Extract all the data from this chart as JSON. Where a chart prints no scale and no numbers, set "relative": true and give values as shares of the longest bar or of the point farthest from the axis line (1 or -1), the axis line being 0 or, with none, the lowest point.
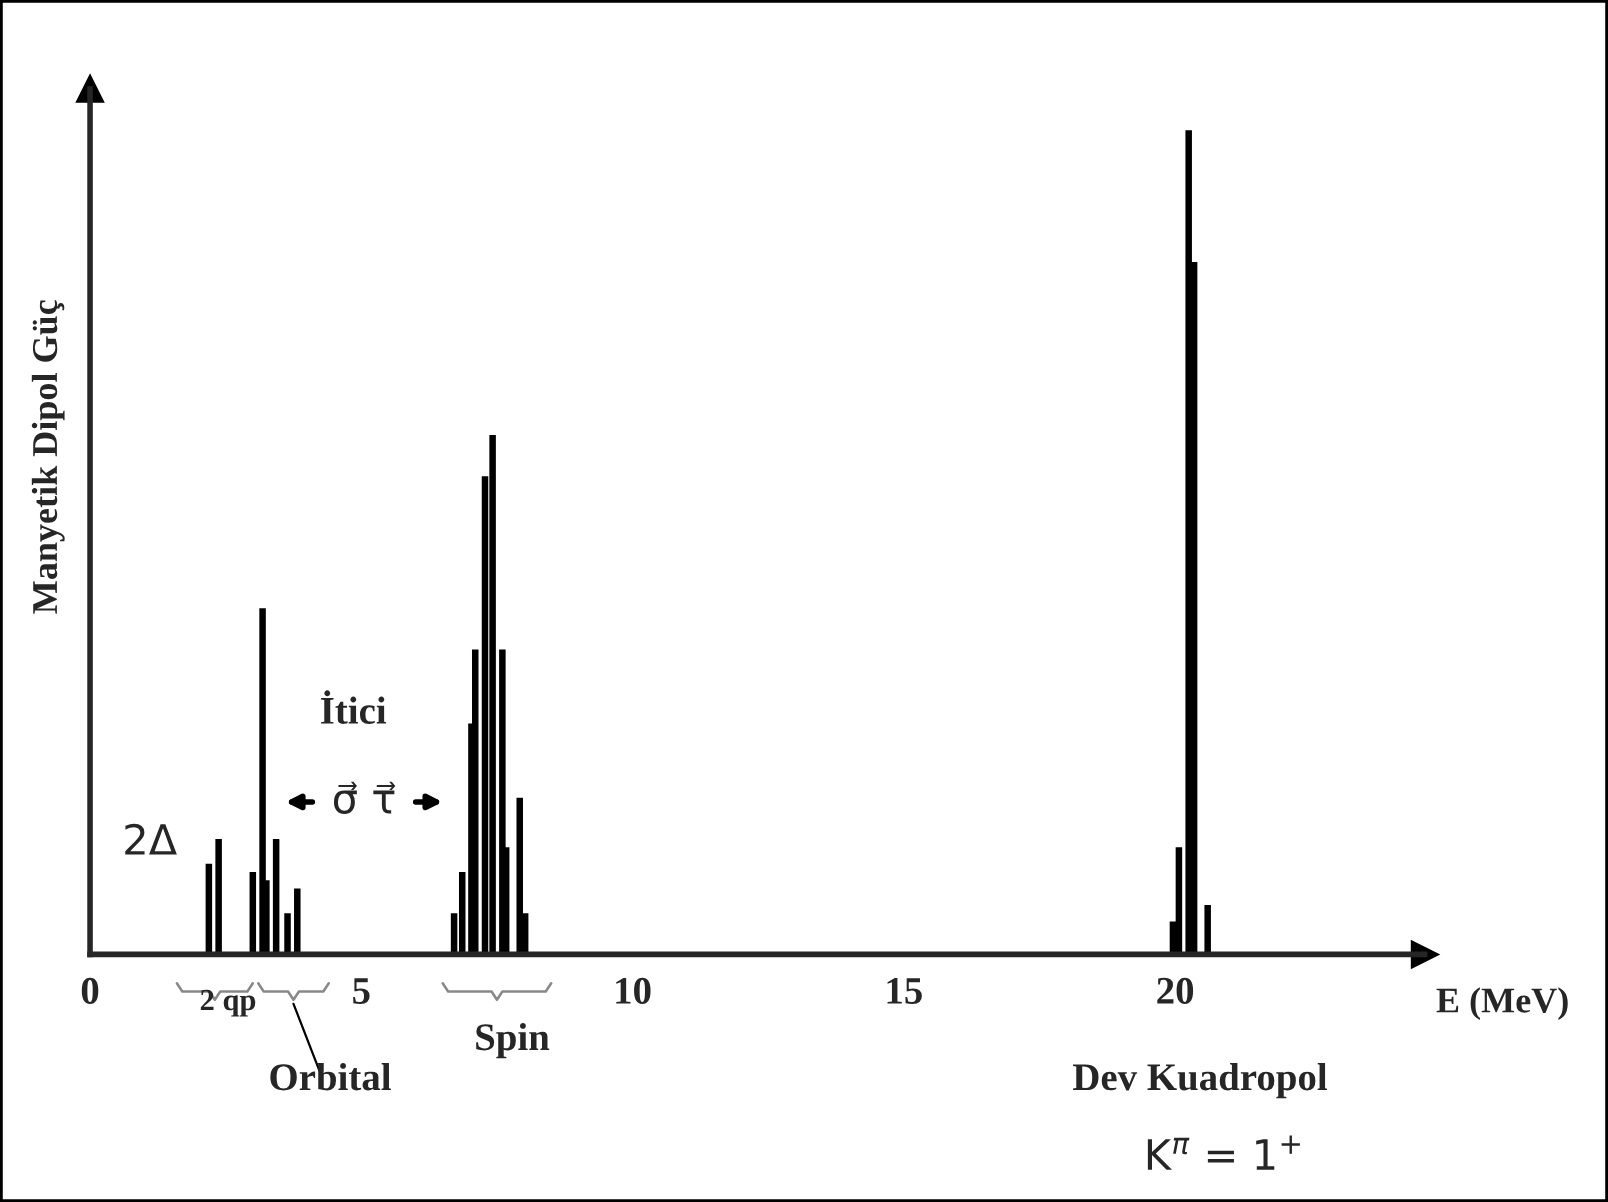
{
  "chart_data": {
    "type": "bar",
    "relative": true,
    "xlabel": "E (MeV)",
    "ylabel": "Manyetik Dipol Güç",
    "x": [
      2.19,
      2.37,
      3.0,
      3.18,
      3.25,
      3.43,
      3.64,
      3.82,
      6.71,
      6.86,
      7.03,
      7.1,
      7.28,
      7.42,
      7.6,
      7.67,
      7.92,
      8.02,
      19.96,
      20.07,
      20.25,
      20.35,
      20.6
    ],
    "series": [
      {
        "color": "#000000",
        "values": [
          0.11,
          0.14,
          0.1,
          0.42,
          0.09,
          0.14,
          0.05,
          0.08,
          0.05,
          0.1,
          0.28,
          0.37,
          0.58,
          0.63,
          0.37,
          0.13,
          0.19,
          0.05,
          0.04,
          0.13,
          1.0,
          0.84,
          0.06
        ]
      }
    ],
    "xlim": [
      0,
      24.6
    ],
    "xticks": [
      0,
      5,
      10,
      15,
      20
    ],
    "annotations": [
      "2Δ",
      "İtici",
      "σ⃗ τ⃗",
      "2 qp",
      "Orbital",
      "Spin",
      "Dev Kuadropol",
      "K$^{π}$ = 1$^{+}$"
    ],
    "grid": false,
    "legend": false
  }
}
